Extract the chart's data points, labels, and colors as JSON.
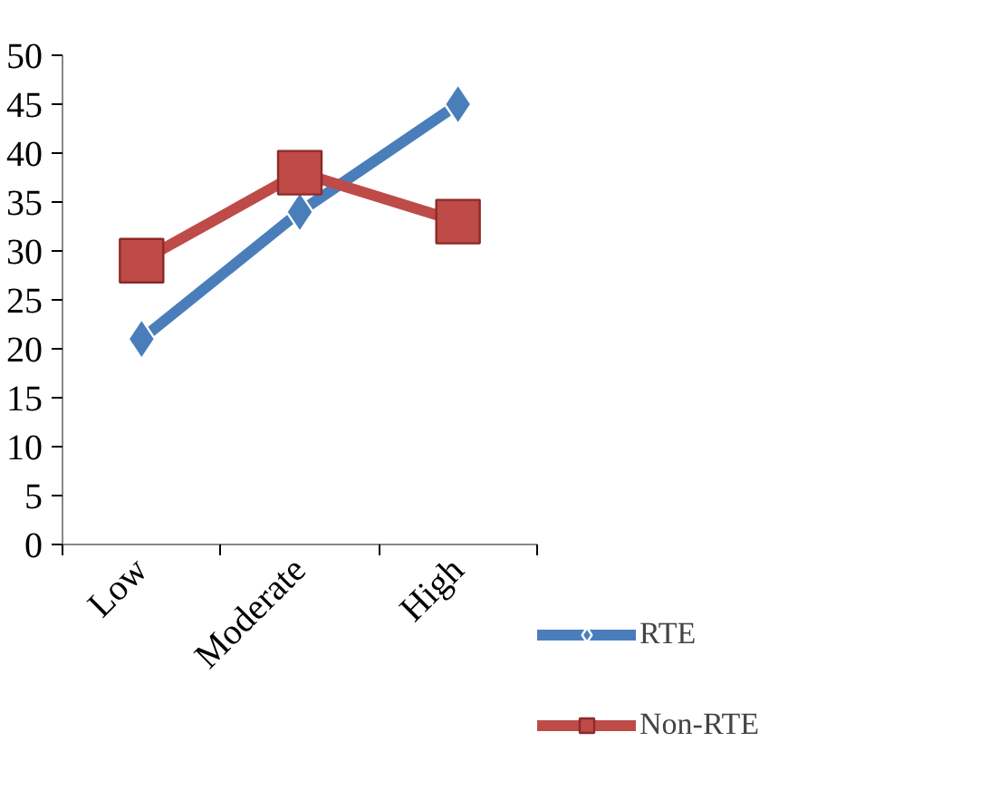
{
  "chart_data": {
    "type": "line",
    "categories": [
      "Low",
      "Moderate",
      "High"
    ],
    "series": [
      {
        "name": "RTE",
        "color": "#4a7ebb",
        "values": [
          21,
          34,
          45
        ],
        "marker": "diamond"
      },
      {
        "name": "Non-RTE",
        "color": "#be4b48",
        "values": [
          29,
          38,
          33
        ],
        "marker": "square"
      }
    ],
    "ylim": [
      0,
      50
    ],
    "yticks": [
      0,
      5,
      10,
      15,
      20,
      25,
      30,
      35,
      40,
      45,
      50
    ],
    "grid": false,
    "legend": "right"
  }
}
